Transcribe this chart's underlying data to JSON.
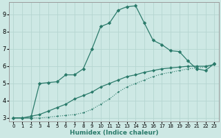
{
  "xlabel": "Humidex (Indice chaleur)",
  "background_color": "#cde8e4",
  "grid_color": "#b5d5d0",
  "line_color": "#2a7a6a",
  "xlim": [
    -0.5,
    23.5
  ],
  "ylim": [
    2.8,
    9.7
  ],
  "yticks": [
    3,
    4,
    5,
    6,
    7,
    8,
    9
  ],
  "xticks": [
    0,
    1,
    2,
    3,
    4,
    5,
    6,
    7,
    8,
    9,
    10,
    11,
    12,
    13,
    14,
    15,
    16,
    17,
    18,
    19,
    20,
    21,
    22,
    23
  ],
  "line1_x": [
    0,
    1,
    2,
    3,
    4,
    5,
    6,
    7,
    8,
    9,
    10,
    11,
    12,
    13,
    14,
    15,
    16,
    17,
    18,
    19,
    20,
    21,
    22,
    23
  ],
  "line1_y": [
    3.0,
    3.0,
    3.1,
    3.2,
    3.4,
    3.6,
    3.8,
    4.1,
    4.3,
    4.5,
    4.8,
    5.0,
    5.2,
    5.4,
    5.5,
    5.65,
    5.75,
    5.85,
    5.9,
    5.95,
    6.0,
    6.0,
    6.0,
    6.1
  ],
  "line2_x": [
    0,
    1,
    2,
    3,
    4,
    5,
    6,
    7,
    8,
    9,
    10,
    11,
    12,
    13,
    14,
    15,
    16,
    17,
    18,
    19,
    20,
    21,
    22,
    23
  ],
  "line2_y": [
    3.0,
    3.0,
    3.0,
    3.0,
    3.05,
    3.1,
    3.15,
    3.2,
    3.3,
    3.5,
    3.8,
    4.1,
    4.5,
    4.8,
    5.0,
    5.2,
    5.4,
    5.55,
    5.65,
    5.75,
    5.85,
    5.9,
    5.95,
    6.1
  ],
  "line3_x": [
    0,
    1,
    2,
    3,
    4,
    5,
    6,
    7,
    8,
    9,
    10,
    11,
    12,
    13,
    14,
    15,
    16,
    17,
    18,
    19,
    20,
    21,
    22,
    23
  ],
  "line3_y": [
    3.0,
    3.0,
    3.0,
    5.0,
    5.05,
    5.1,
    5.5,
    5.5,
    5.85,
    7.0,
    8.3,
    8.5,
    9.25,
    9.45,
    9.5,
    8.5,
    7.5,
    7.25,
    6.9,
    6.85,
    6.3,
    5.85,
    5.75,
    6.15
  ]
}
